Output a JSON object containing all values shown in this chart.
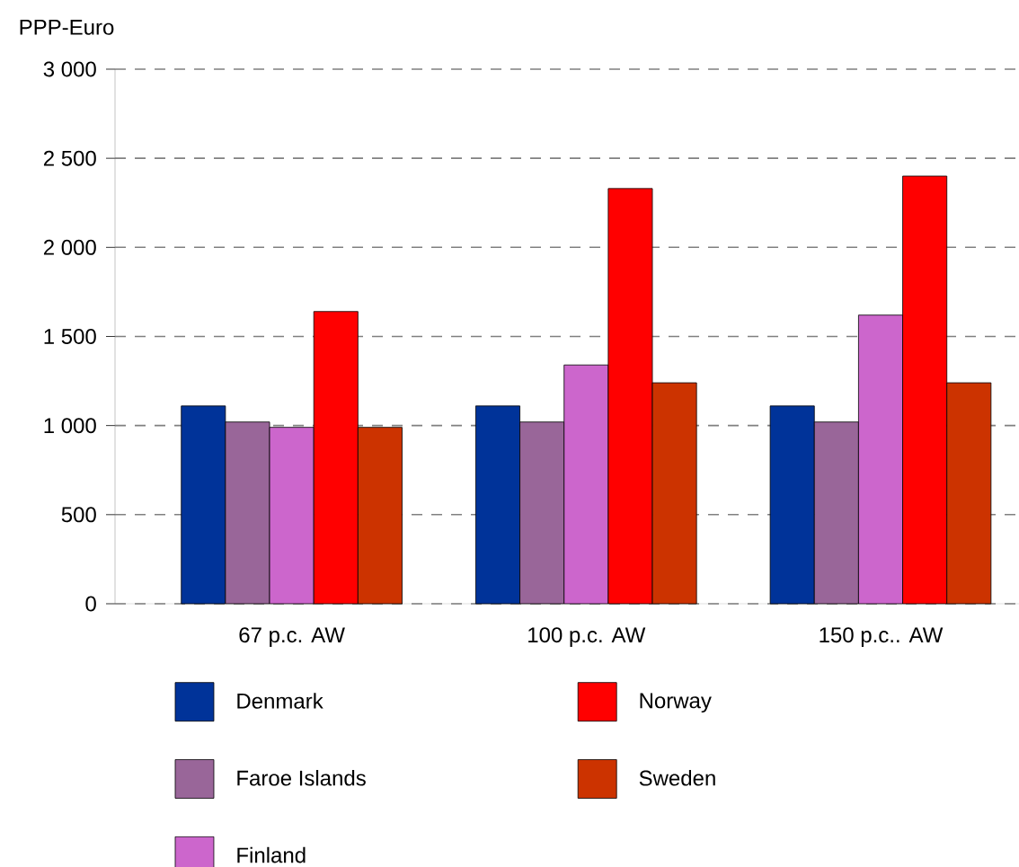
{
  "chart_data": {
    "type": "bar",
    "ylabel": "PPP-Euro",
    "categories": [
      "67 p.c. AW",
      "100 p.c. AW",
      "150 p.c.. AW"
    ],
    "series": [
      {
        "name": "Denmark",
        "color": "#003399",
        "values": [
          1110,
          1110,
          1110
        ]
      },
      {
        "name": "Faroe Islands",
        "color": "#996699",
        "values": [
          1020,
          1020,
          1020
        ]
      },
      {
        "name": "Finland",
        "color": "#cc66cc",
        "values": [
          990,
          1340,
          1620
        ]
      },
      {
        "name": "Norway",
        "color": "#ff0000",
        "values": [
          1640,
          2330,
          2400
        ]
      },
      {
        "name": "Sweden",
        "color": "#cc3300",
        "values": [
          990,
          1240,
          1240
        ]
      }
    ],
    "ylim": [
      0,
      3000
    ],
    "yticks": [
      0,
      500,
      {
        "value": 1000,
        "label": "1 000"
      },
      {
        "value": 1500,
        "label": "1 500"
      },
      {
        "value": 2000,
        "label": "2 000"
      },
      {
        "value": 2500,
        "label": "2 500"
      },
      {
        "value": 3000,
        "label": "3 000"
      }
    ],
    "grid": "y",
    "legend": "bottom"
  }
}
